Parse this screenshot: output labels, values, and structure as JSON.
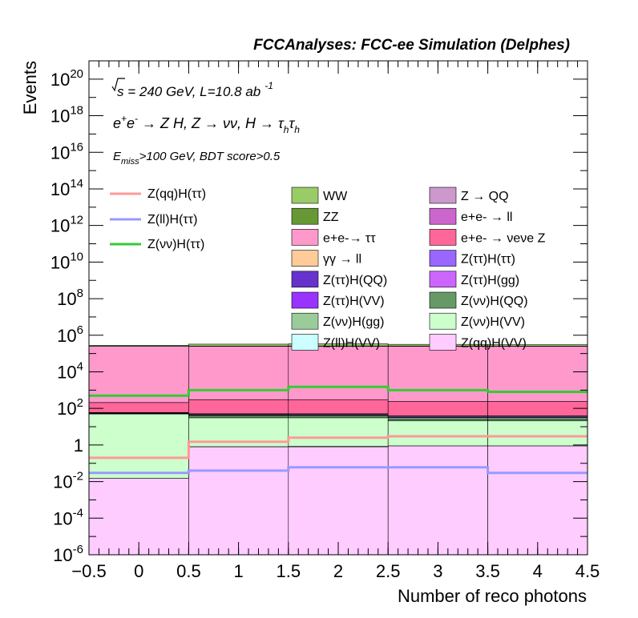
{
  "chart_data": {
    "type": "area",
    "title": "FCCAnalyses: FCC-ee Simulation (Delphes)",
    "xlabel": "Number of reco photons",
    "ylabel": "Events",
    "xlim": [
      -0.5,
      4.5
    ],
    "ylim": [
      1e-06,
      1e+21
    ],
    "yscale": "log",
    "bin_edges": [
      -0.5,
      0.5,
      1.5,
      2.5,
      3.5,
      4.5
    ],
    "x_tick_labels": [
      "−0.5",
      "0",
      "0.5",
      "1",
      "1.5",
      "2",
      "2.5",
      "3",
      "3.5",
      "4",
      "4.5"
    ],
    "annotations": {
      "line1": "√s = 240 GeV, L=10.8 ab -1",
      "line2": "e+e- → Z H, Z → νν, H → τhτh",
      "line3": "Emiss>100 GeV, BDT score>0.5"
    },
    "stacked_series": [
      {
        "name": "Z(qq)H(VV)",
        "color": "#ffccff",
        "values": [
          0.015,
          0.8,
          0.8,
          0.9,
          0.9
        ]
      },
      {
        "name": "Z(ll)H(VV)",
        "color": "#ccffff",
        "values": [
          0,
          0.012,
          0.04,
          0,
          0
        ]
      },
      {
        "name": "Z(νν)H(VV)",
        "color": "#ccffcc",
        "values": [
          50,
          30,
          30,
          20,
          20
        ]
      },
      {
        "name": "Z(νν)H(QQ)",
        "color": "#669966",
        "values": [
          1.5,
          8,
          8,
          6,
          6
        ]
      },
      {
        "name": "Z(νν)H(gg)",
        "color": "#99cc99",
        "values": [
          3,
          5,
          5,
          5,
          5
        ]
      },
      {
        "name": "Z(ττ)H(gg)",
        "color": "#cc66ff",
        "values": [
          0,
          0,
          0,
          0.01,
          0.1
        ]
      },
      {
        "name": "Z(ττ)H(VV)",
        "color": "#9933ff",
        "values": [
          1,
          2,
          2,
          2,
          2
        ]
      },
      {
        "name": "Z(ττ)H(QQ)",
        "color": "#6633cc",
        "values": [
          0.01,
          0.01,
          0.05,
          0.2,
          0.2
        ]
      },
      {
        "name": "Z(ττ)H(ττ)",
        "color": "#9966ff",
        "values": [
          4,
          5,
          5,
          5,
          5
        ]
      },
      {
        "name": "γγ → ll",
        "color": "#ffcc99",
        "values": [
          0.5,
          0.3,
          0.1,
          0.1,
          0
        ]
      },
      {
        "name": "e+e- → νeνe Z",
        "color": "#ff6699",
        "values": [
          150,
          250,
          250,
          200,
          200
        ]
      },
      {
        "name": "e+e- → ll",
        "color": "#cc66cc",
        "values": [
          0,
          2,
          1,
          0,
          0
        ]
      },
      {
        "name": "Z → QQ",
        "color": "#cc99cc",
        "values": [
          0,
          0,
          0,
          0,
          0
        ]
      },
      {
        "name": "e+e- → ττ",
        "color": "#ff99cc",
        "values": [
          250000,
          250000,
          250000,
          250000,
          250000
        ]
      },
      {
        "name": "ZZ",
        "color": "#669933",
        "values": [
          600,
          5000,
          8000,
          7000,
          5000
        ]
      },
      {
        "name": "WW",
        "color": "#99cc66",
        "values": [
          30000,
          70000,
          80000,
          60000,
          50000
        ]
      }
    ],
    "line_series": [
      {
        "name": "Z(qq)H(ττ)",
        "color": "#ff9999",
        "values": [
          0.2,
          1.5,
          2.5,
          3,
          3
        ]
      },
      {
        "name": "Z(ll)H(ττ)",
        "color": "#9999ff",
        "values": [
          0.03,
          0.04,
          0.06,
          0.06,
          0.03
        ]
      },
      {
        "name": "Z(νν)H(ττ)",
        "color": "#33cc33",
        "values": [
          500,
          1000,
          1500,
          1000,
          800
        ]
      }
    ],
    "legend": {
      "placement": "upper-right",
      "lines": [
        "Z(qq)H(ττ)",
        "Z(ll)H(ττ)",
        "Z(νν)H(ττ)"
      ],
      "col1": [
        "WW",
        "ZZ",
        "e+e-→ ττ",
        "γγ → ll",
        "Z(ττ)H(QQ)",
        "Z(ττ)H(VV)",
        "Z(νν)H(gg)",
        "Z(ll)H(VV)"
      ],
      "col2": [
        "Z → QQ",
        "e+e- → ll",
        "e+e- → νeνe Z",
        "Z(ττ)H(ττ)",
        "Z(ττ)H(gg)",
        "Z(νν)H(QQ)",
        "Z(νν)H(VV)",
        "Z(qq)H(VV)"
      ]
    }
  }
}
